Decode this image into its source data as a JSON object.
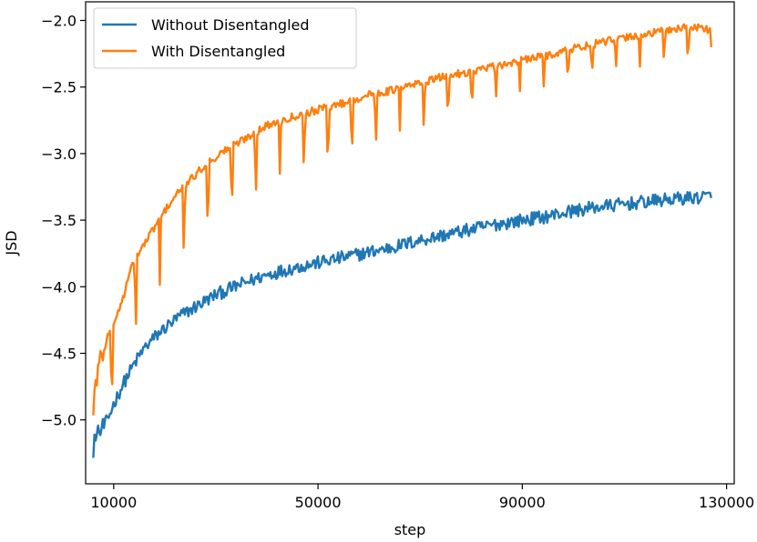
{
  "chart_data": {
    "type": "line",
    "title": "",
    "xlabel": "step",
    "ylabel": "JSD",
    "xlim": [
      4500,
      131500
    ],
    "ylim": [
      -5.48,
      -1.86
    ],
    "xticks": [
      10000,
      50000,
      90000,
      130000
    ],
    "xtick_labels": [
      "10000",
      "50000",
      "90000",
      "130000"
    ],
    "yticks": [
      -2.0,
      -2.5,
      -3.0,
      -3.5,
      -4.0,
      -4.5,
      -5.0
    ],
    "ytick_labels": [
      "−2.0",
      "−2.5",
      "−3.0",
      "−3.5",
      "−4.0",
      "−4.5",
      "−5.0"
    ],
    "grid": false,
    "legend_position": "top-left",
    "series": [
      {
        "name": "Without Disentangled",
        "color": "#1f77b4",
        "x": [
          6000,
          7000,
          8000,
          9000,
          10000,
          12000,
          14000,
          16000,
          18000,
          20000,
          23000,
          26000,
          30000,
          35000,
          40000,
          45000,
          50000,
          55000,
          60000,
          65000,
          70000,
          75000,
          80000,
          85000,
          90000,
          95000,
          100000,
          105000,
          110000,
          115000,
          120000,
          124000,
          127000
        ],
        "values": [
          -5.15,
          -5.1,
          -5.06,
          -4.98,
          -4.88,
          -4.72,
          -4.58,
          -4.46,
          -4.38,
          -4.31,
          -4.22,
          -4.15,
          -4.06,
          -3.98,
          -3.91,
          -3.86,
          -3.82,
          -3.78,
          -3.74,
          -3.7,
          -3.65,
          -3.61,
          -3.57,
          -3.53,
          -3.5,
          -3.47,
          -3.43,
          -3.4,
          -3.38,
          -3.36,
          -3.34,
          -3.33,
          -3.32
        ]
      },
      {
        "name": "With Disentangled",
        "color": "#ff7f0e",
        "x": [
          6000,
          6500,
          7000,
          8000,
          9000,
          10000,
          11000,
          12000,
          13000,
          14000,
          16000,
          18000,
          20000,
          22000,
          25000,
          28000,
          32000,
          36000,
          40000,
          45000,
          50000,
          55000,
          60000,
          65000,
          70000,
          75000,
          80000,
          85000,
          90000,
          95000,
          100000,
          105000,
          110000,
          115000,
          120000,
          124000,
          127000
        ],
        "values": [
          -4.9,
          -4.75,
          -4.6,
          -4.48,
          -4.36,
          -4.27,
          -4.18,
          -4.06,
          -3.92,
          -3.8,
          -3.68,
          -3.55,
          -3.43,
          -3.32,
          -3.2,
          -3.08,
          -2.97,
          -2.88,
          -2.79,
          -2.72,
          -2.67,
          -2.62,
          -2.56,
          -2.52,
          -2.47,
          -2.42,
          -2.38,
          -2.34,
          -2.3,
          -2.26,
          -2.21,
          -2.17,
          -2.13,
          -2.1,
          -2.06,
          -2.05,
          -2.07
        ]
      }
    ]
  }
}
